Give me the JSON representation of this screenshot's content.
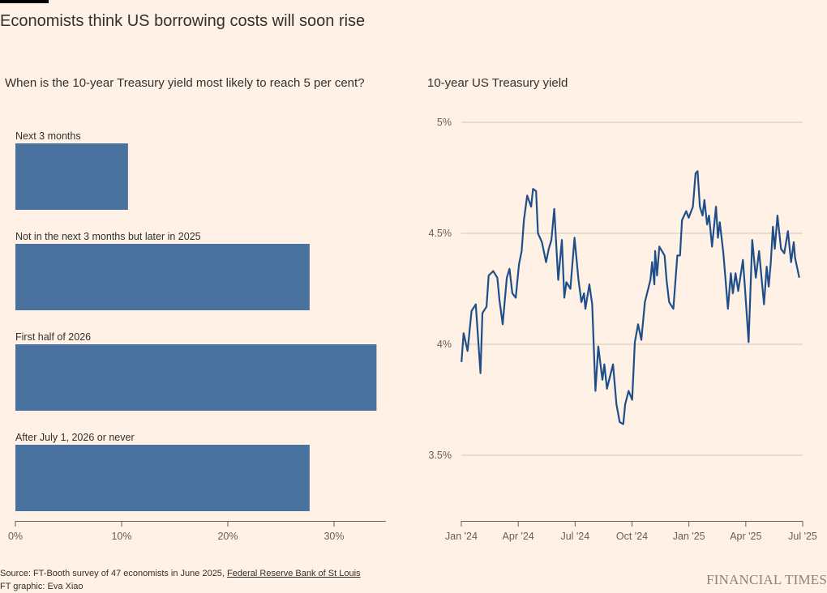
{
  "title": "Economists think US borrowing costs will soon rise",
  "source_prefix": "Source: FT-Booth survey of 47 economists in June 2025, ",
  "source_link": "Federal Reserve Bank of St Louis",
  "credit": "FT graphic: Eva Xiao",
  "logo": "FINANCIAL TIMES",
  "colors": {
    "background": "#FFF1E5",
    "bar": "#4A72A0",
    "line": "#1F4F8A",
    "grid": "#CEC6B9"
  },
  "chart_data": [
    {
      "type": "bar",
      "orientation": "horizontal",
      "title": "When is the 10-year Treasury yield most likely to reach 5 per cent?",
      "categories": [
        "Next 3 months",
        "Not in the next 3 months but later in 2025",
        "First half of 2026",
        "After July 1, 2026 or never"
      ],
      "values": [
        10.6,
        27.7,
        34.0,
        27.7
      ],
      "unit": "%",
      "xlim": [
        0,
        35
      ],
      "xticks": [
        0,
        10,
        20,
        30
      ],
      "xtick_labels": [
        "0%",
        "10%",
        "20%",
        "30%"
      ]
    },
    {
      "type": "line",
      "title": "10-year US Treasury yield",
      "x_unit": "months since Jan 2024",
      "ylim": [
        3.2,
        5.05
      ],
      "yticks": [
        3.5,
        4,
        4.5,
        5
      ],
      "ytick_labels": [
        "3.5%",
        "4%",
        "4.5%",
        "5%"
      ],
      "xticks": [
        0,
        3,
        6,
        9,
        12,
        15,
        18
      ],
      "xtick_labels": [
        "Jan '24",
        "Apr '24",
        "Jul '24",
        "Oct '24",
        "Jan '25",
        "Apr '25",
        "Jul '25"
      ],
      "grid": true,
      "x": [
        0.01,
        0.12,
        0.33,
        0.54,
        0.76,
        1.01,
        1.11,
        1.33,
        1.44,
        1.68,
        1.9,
        2.01,
        2.18,
        2.4,
        2.54,
        2.69,
        2.87,
        3.04,
        3.18,
        3.3,
        3.47,
        3.68,
        3.78,
        3.94,
        4.04,
        4.25,
        4.47,
        4.61,
        4.75,
        4.9,
        5.11,
        5.3,
        5.43,
        5.54,
        5.75,
        5.97,
        6.18,
        6.33,
        6.47,
        6.54,
        6.75,
        6.9,
        7.07,
        7.22,
        7.44,
        7.54,
        7.68,
        8.0,
        8.18,
        8.35,
        8.54,
        8.64,
        8.82,
        9.01,
        9.15,
        9.32,
        9.49,
        9.68,
        9.97,
        10.06,
        10.18,
        10.22,
        10.32,
        10.44,
        10.72,
        10.82,
        10.96,
        11.18,
        11.39,
        11.53,
        11.64,
        11.86,
        11.99,
        12.21,
        12.35,
        12.46,
        12.58,
        12.72,
        12.82,
        12.96,
        13.06,
        13.22,
        13.43,
        13.53,
        13.63,
        13.82,
        14.06,
        14.21,
        14.32,
        14.46,
        14.6,
        14.85,
        14.96,
        15.15,
        15.34,
        15.53,
        15.7,
        15.96,
        16.1,
        16.21,
        16.32,
        16.43,
        16.53,
        16.67,
        16.86,
        17.03,
        17.22,
        17.39,
        17.53,
        17.6,
        17.82
      ],
      "y": [
        3.92,
        4.05,
        3.97,
        4.15,
        4.18,
        3.87,
        4.14,
        4.17,
        4.31,
        4.33,
        4.3,
        4.2,
        4.09,
        4.3,
        4.34,
        4.23,
        4.21,
        4.36,
        4.42,
        4.56,
        4.67,
        4.62,
        4.7,
        4.69,
        4.5,
        4.46,
        4.37,
        4.43,
        4.47,
        4.61,
        4.29,
        4.47,
        4.21,
        4.28,
        4.25,
        4.48,
        4.29,
        4.19,
        4.23,
        4.16,
        4.27,
        4.18,
        3.79,
        3.99,
        3.84,
        3.91,
        3.8,
        3.91,
        3.73,
        3.65,
        3.64,
        3.73,
        3.79,
        3.75,
        4.01,
        4.09,
        4.02,
        4.19,
        4.29,
        4.37,
        4.27,
        4.42,
        4.31,
        4.44,
        4.4,
        4.29,
        4.19,
        4.16,
        4.4,
        4.4,
        4.56,
        4.6,
        4.57,
        4.62,
        4.77,
        4.78,
        4.62,
        4.58,
        4.65,
        4.54,
        4.58,
        4.44,
        4.62,
        4.48,
        4.55,
        4.41,
        4.16,
        4.32,
        4.23,
        4.32,
        4.24,
        4.38,
        4.25,
        4.01,
        4.47,
        4.3,
        4.42,
        4.18,
        4.35,
        4.26,
        4.37,
        4.53,
        4.43,
        4.58,
        4.43,
        4.41,
        4.51,
        4.37,
        4.46,
        4.39,
        4.3
      ]
    }
  ]
}
